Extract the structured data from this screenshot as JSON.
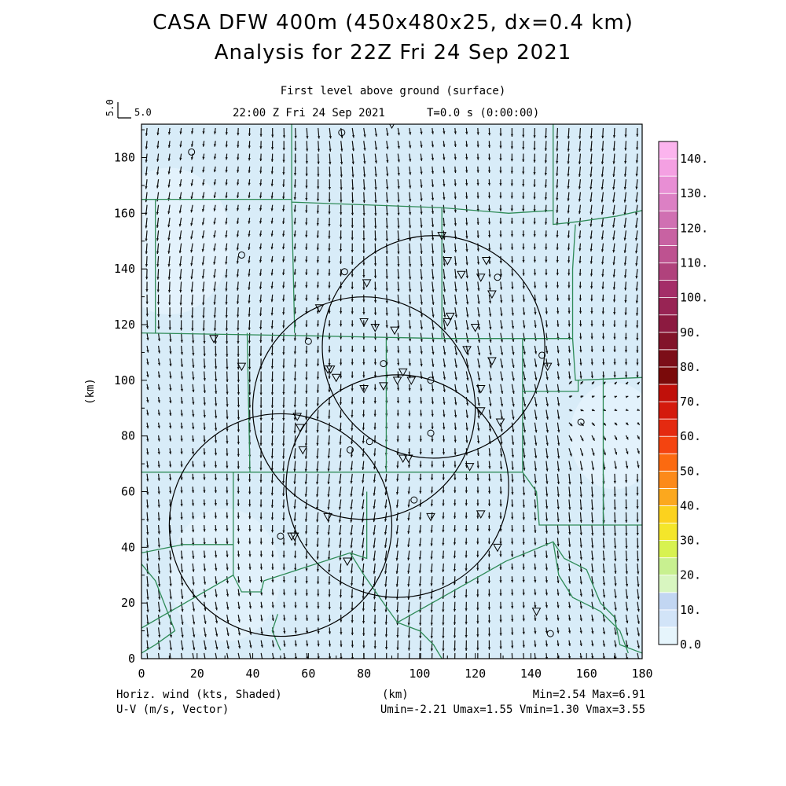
{
  "title": "CASA DFW 400m (450x480x25, dx=0.4 km)",
  "subtitle": "Analysis for 22Z Fri 24 Sep 2021",
  "level_label": "First level above ground (surface)",
  "time_label": "22:00 Z Fri 24 Sep 2021",
  "t_label": "T=0.0 s (0:00:00)",
  "ref_vector": {
    "left_label": "5.0",
    "right_label": "5.0"
  },
  "footer": {
    "left1": "Horiz. wind (kts, Shaded)",
    "left2": "U-V (m/s, Vector)",
    "center": "(km)",
    "right1": "Min=2.54 Max=6.91",
    "right2": "Umin=-2.21 Umax=1.55 Vmin=1.30 Vmax=3.55"
  },
  "colors": {
    "field_fill": "#d8ecf8",
    "county_lines": "#2e8b57",
    "radar_rings": "#000000"
  },
  "chart_data": {
    "type": "heatmap",
    "xlabel": "",
    "ylabel": "(km)",
    "xlim": [
      0,
      180
    ],
    "ylim": [
      0,
      192
    ],
    "x_ticks": [
      0,
      20,
      40,
      60,
      80,
      100,
      120,
      140,
      160,
      180
    ],
    "y_ticks": [
      0,
      20,
      40,
      60,
      80,
      100,
      120,
      140,
      160,
      180
    ],
    "colorbar": {
      "levels": [
        0,
        5,
        10,
        15,
        20,
        25,
        30,
        35,
        40,
        45,
        50,
        55,
        60,
        65,
        70,
        75,
        80,
        85,
        90,
        95,
        100,
        105,
        110,
        115,
        120,
        125,
        130,
        135,
        140
      ],
      "labels": [
        "0.0",
        "10.",
        "20.",
        "30.",
        "40.",
        "50.",
        "60.",
        "70.",
        "80.",
        "90.",
        "100.",
        "110.",
        "120.",
        "130.",
        "140."
      ],
      "colors": [
        "#e6f5fc",
        "#d2e4f8",
        "#c2d6f2",
        "#d8f6c0",
        "#c8f090",
        "#d8f250",
        "#f4e62a",
        "#fcd21e",
        "#fca81e",
        "#fc8a1a",
        "#fc6a10",
        "#f44410",
        "#e42a10",
        "#d41a0c",
        "#c0100a",
        "#7a0a0a",
        "#7c0e18",
        "#82142a",
        "#8c1a40",
        "#982454",
        "#a42e68",
        "#b0427c",
        "#be5290",
        "#c862a2",
        "#d070b2",
        "#dc80c4",
        "#e88ed4",
        "#f4a0e2",
        "#fcb4ee"
      ]
    },
    "field": {
      "min": 2.54,
      "max": 6.91,
      "umin": -2.21,
      "umax": 1.55,
      "vmin": 1.3,
      "vmax": 3.55
    },
    "radar_rings": [
      {
        "cx": 105,
        "cy": 112,
        "r": 40
      },
      {
        "cx": 80,
        "cy": 90,
        "r": 40
      },
      {
        "cx": 92,
        "cy": 62,
        "r": 40
      },
      {
        "cx": 50,
        "cy": 48,
        "r": 40
      }
    ],
    "stations_triangle": [
      [
        26,
        115
      ],
      [
        36,
        105
      ],
      [
        56,
        87
      ],
      [
        57,
        83
      ],
      [
        64,
        126
      ],
      [
        67,
        104
      ],
      [
        68,
        104
      ],
      [
        70,
        101
      ],
      [
        58,
        75
      ],
      [
        80,
        121
      ],
      [
        80,
        97
      ],
      [
        81,
        135
      ],
      [
        84,
        119
      ],
      [
        87,
        98
      ],
      [
        91,
        118
      ],
      [
        92,
        100
      ],
      [
        94,
        103
      ],
      [
        94,
        72
      ],
      [
        96,
        72
      ],
      [
        97,
        100
      ],
      [
        104,
        51
      ],
      [
        108,
        152
      ],
      [
        110,
        143
      ],
      [
        110,
        121
      ],
      [
        111,
        123
      ],
      [
        115,
        138
      ],
      [
        117,
        111
      ],
      [
        120,
        119
      ],
      [
        122,
        137
      ],
      [
        122,
        97
      ],
      [
        122,
        89
      ],
      [
        122,
        52
      ],
      [
        124,
        143
      ],
      [
        126,
        107
      ],
      [
        126,
        131
      ],
      [
        128,
        40
      ],
      [
        129,
        85
      ],
      [
        142,
        17
      ],
      [
        146,
        105
      ],
      [
        55,
        44
      ],
      [
        54,
        44
      ],
      [
        67,
        51
      ],
      [
        74,
        35
      ],
      [
        90,
        192
      ],
      [
        118,
        69
      ]
    ],
    "stations_circle": [
      [
        18,
        182
      ],
      [
        72,
        189
      ],
      [
        36,
        145
      ],
      [
        60,
        114
      ],
      [
        73,
        139
      ],
      [
        87,
        106
      ],
      [
        82,
        78
      ],
      [
        98,
        57
      ],
      [
        104,
        81
      ],
      [
        104,
        100
      ],
      [
        128,
        137
      ],
      [
        144,
        109
      ],
      [
        158,
        85
      ],
      [
        147,
        9
      ],
      [
        50,
        44
      ],
      [
        75,
        75
      ]
    ],
    "county_lines": [
      [
        [
          0,
          165
        ],
        [
          54,
          165
        ],
        [
          54,
          192
        ]
      ],
      [
        [
          54,
          165
        ],
        [
          54,
          164
        ],
        [
          108,
          162
        ],
        [
          132,
          160
        ],
        [
          148,
          161
        ],
        [
          148,
          192
        ]
      ],
      [
        [
          0,
          165
        ],
        [
          5,
          165
        ],
        [
          5,
          117
        ]
      ],
      [
        [
          54,
          164
        ],
        [
          55,
          120
        ],
        [
          55,
          117
        ]
      ],
      [
        [
          0,
          117
        ],
        [
          60,
          116
        ],
        [
          108,
          115
        ],
        [
          137,
          115
        ],
        [
          155,
          115
        ]
      ],
      [
        [
          148,
          161
        ],
        [
          148,
          156
        ],
        [
          157,
          157
        ],
        [
          171,
          159
        ],
        [
          180,
          161
        ]
      ],
      [
        [
          155,
          115
        ],
        [
          155,
          140
        ],
        [
          156,
          156
        ]
      ],
      [
        [
          155,
          115
        ],
        [
          156,
          100
        ],
        [
          180,
          101
        ]
      ],
      [
        [
          157,
          100
        ],
        [
          157,
          96
        ],
        [
          137,
          96
        ]
      ],
      [
        [
          108,
          115
        ],
        [
          108,
          140
        ],
        [
          108,
          162
        ]
      ],
      [
        [
          38,
          117
        ],
        [
          39,
          67
        ],
        [
          0,
          67
        ]
      ],
      [
        [
          88,
          115
        ],
        [
          88,
          80
        ],
        [
          88,
          67
        ]
      ],
      [
        [
          137,
          115
        ],
        [
          137,
          67
        ],
        [
          88,
          67
        ],
        [
          39,
          67
        ]
      ],
      [
        [
          137,
          67
        ],
        [
          142,
          60
        ],
        [
          143,
          48
        ],
        [
          180,
          48
        ]
      ],
      [
        [
          166,
          48
        ],
        [
          166,
          101
        ]
      ],
      [
        [
          33,
          67
        ],
        [
          33,
          41
        ],
        [
          15,
          41
        ],
        [
          0,
          38
        ]
      ],
      [
        [
          33,
          41
        ],
        [
          33,
          30
        ],
        [
          36,
          24
        ],
        [
          43,
          24
        ],
        [
          44,
          28
        ]
      ],
      [
        [
          0,
          34
        ],
        [
          5,
          28
        ],
        [
          12,
          10
        ],
        [
          5,
          5
        ],
        [
          0,
          2
        ]
      ],
      [
        [
          0,
          11
        ],
        [
          33,
          30
        ]
      ],
      [
        [
          44,
          28
        ],
        [
          75,
          38
        ],
        [
          81,
          36
        ],
        [
          81,
          60
        ]
      ],
      [
        [
          75,
          38
        ],
        [
          80,
          30
        ],
        [
          87,
          20
        ],
        [
          92,
          13
        ],
        [
          108,
          22
        ],
        [
          131,
          35
        ],
        [
          148,
          42
        ],
        [
          152,
          36
        ],
        [
          160,
          32
        ],
        [
          165,
          20
        ],
        [
          170,
          15
        ],
        [
          172,
          5
        ],
        [
          180,
          2
        ]
      ],
      [
        [
          92,
          13
        ],
        [
          100,
          10
        ],
        [
          105,
          5
        ],
        [
          108,
          0
        ]
      ],
      [
        [
          148,
          42
        ],
        [
          150,
          30
        ],
        [
          155,
          22
        ],
        [
          165,
          17
        ],
        [
          172,
          10
        ],
        [
          175,
          2
        ]
      ],
      [
        [
          49,
          16
        ],
        [
          47,
          10
        ],
        [
          50,
          3
        ]
      ]
    ]
  }
}
